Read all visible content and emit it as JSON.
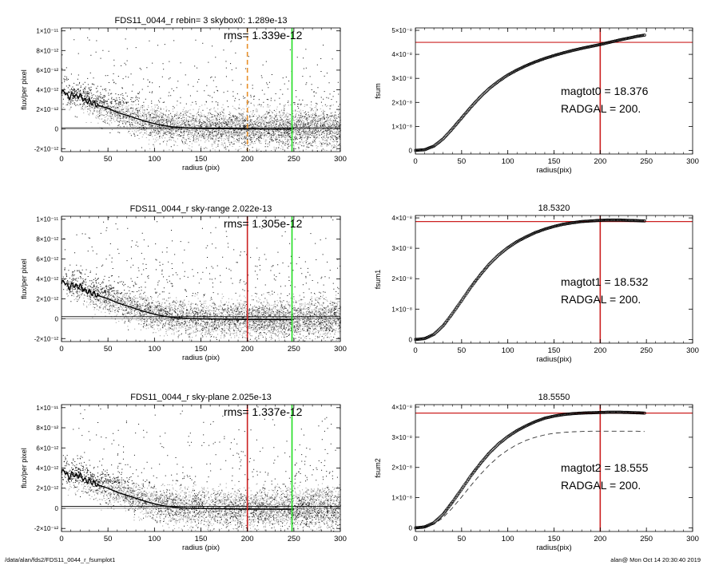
{
  "footer": {
    "path": "/data/alan/fds2/FDS11_0044_r_fsumplot1",
    "user_date": "alan@  Mon Oct 14 20:30:40 2019"
  },
  "colors": {
    "scatter_light": "#a8a8a8",
    "scatter_dark": "#1e1e1e",
    "profile": "#000000",
    "red": "#cc2020",
    "green": "#22dd22",
    "orange": "#e8902a"
  },
  "chart_data": [
    {
      "id": "flux1",
      "type": "scatter",
      "title": "FDS11_0044_r rebin= 3    skybox0:  1.289e-13",
      "annotation": "rms= 1.339e-12",
      "xlabel": "radius (pix)",
      "ylabel": "flux/per pixel",
      "xlim": [
        0,
        300
      ],
      "ylim": [
        -2.3e-12,
        1.03e-11
      ],
      "xticks": [
        "0",
        "50",
        "100",
        "150",
        "200",
        "250",
        "300"
      ],
      "yticks": [
        {
          "label": "1×10⁻¹¹",
          "value": 1e-11
        },
        {
          "label": "8×10⁻¹²",
          "value": 8e-12
        },
        {
          "label": "6×10⁻¹²",
          "value": 6e-12
        },
        {
          "label": "4×10⁻¹²",
          "value": 4e-12
        },
        {
          "label": "2×10⁻¹²",
          "value": 2e-12
        },
        {
          "label": "0",
          "value": 0
        },
        {
          "label": "-2×10⁻¹²",
          "value": -2e-12
        }
      ],
      "vlines": [
        {
          "x": 200,
          "color": "orange",
          "style": "dashed"
        },
        {
          "x": 248,
          "color": "green",
          "style": "solid"
        }
      ],
      "sky_level": 1.289e-13,
      "profile": {
        "x": [
          0,
          3,
          6,
          9,
          12,
          15,
          20,
          25,
          30,
          40,
          50,
          60,
          70,
          80,
          90,
          100,
          110,
          120,
          130,
          150,
          175,
          200,
          225,
          250
        ],
        "y": [
          3.6e-12,
          3.9e-12,
          3.4e-12,
          3.2e-12,
          3.6e-12,
          3.3e-12,
          3.4e-12,
          2.9e-12,
          2.8e-12,
          2.4e-12,
          2.1e-12,
          1.7e-12,
          1.4e-12,
          1.1e-12,
          8e-13,
          5.5e-13,
          3.5e-13,
          2.2e-13,
          1.4e-13,
          8e-14,
          4e-14,
          1e-14,
          0,
          0
        ]
      }
    },
    {
      "id": "fsum0",
      "type": "line",
      "title": "",
      "xlabel": "radius(pix)",
      "ylabel": "fsum",
      "xlim": [
        0,
        300
      ],
      "ylim": [
        -1.5e-09,
        5.1e-08
      ],
      "xticks": [
        "0",
        "50",
        "100",
        "150",
        "200",
        "250",
        "300"
      ],
      "yticks": [
        {
          "label": "0",
          "value": 0
        },
        {
          "label": "1×10⁻⁸",
          "value": 1e-08
        },
        {
          "label": "2×10⁻⁸",
          "value": 2e-08
        },
        {
          "label": "3×10⁻⁸",
          "value": 3e-08
        },
        {
          "label": "4×10⁻⁸",
          "value": 4e-08
        },
        {
          "label": "5×10⁻⁸",
          "value": 5e-08
        }
      ],
      "hline": 4.5e-08,
      "vline": 200,
      "annotations": [
        "magtot0 =  18.376",
        "RADGAL =    200."
      ],
      "curve": {
        "x": [
          0,
          10,
          20,
          30,
          40,
          50,
          60,
          70,
          80,
          90,
          100,
          110,
          120,
          130,
          140,
          150,
          160,
          170,
          180,
          190,
          200,
          210,
          220,
          230,
          240,
          248
        ],
        "y": [
          0,
          3e-10,
          1.8e-09,
          4.8e-09,
          9e-09,
          1.35e-08,
          1.8e-08,
          2.22e-08,
          2.58e-08,
          2.88e-08,
          3.14e-08,
          3.35e-08,
          3.53e-08,
          3.69e-08,
          3.83e-08,
          3.95e-08,
          4.06e-08,
          4.16e-08,
          4.25e-08,
          4.33e-08,
          4.41e-08,
          4.5e-08,
          4.59e-08,
          4.67e-08,
          4.75e-08,
          4.8e-08
        ]
      }
    },
    {
      "id": "flux2",
      "type": "scatter",
      "title": "FDS11_0044_r sky-range  2.022e-13",
      "annotation": "rms= 1.305e-12",
      "xlabel": "radius (pix)",
      "ylabel": "flux/per pixel",
      "xlim": [
        0,
        300
      ],
      "ylim": [
        -2.3e-12,
        1.03e-11
      ],
      "xticks": [
        "0",
        "50",
        "100",
        "150",
        "200",
        "250",
        "300"
      ],
      "yticks": [
        {
          "label": "1×10⁻¹¹",
          "value": 1e-11
        },
        {
          "label": "8×10⁻¹²",
          "value": 8e-12
        },
        {
          "label": "6×10⁻¹²",
          "value": 6e-12
        },
        {
          "label": "4×10⁻¹²",
          "value": 4e-12
        },
        {
          "label": "2×10⁻¹²",
          "value": 2e-12
        },
        {
          "label": "0",
          "value": 0
        },
        {
          "label": "-2×10⁻¹²",
          "value": -2e-12
        }
      ],
      "vlines": [
        {
          "x": 200,
          "color": "red",
          "style": "solid"
        },
        {
          "x": 248,
          "color": "green",
          "style": "solid"
        }
      ],
      "sky_level": 2.022e-13,
      "profile": {
        "x": [
          0,
          3,
          6,
          9,
          12,
          15,
          20,
          25,
          30,
          40,
          50,
          60,
          70,
          80,
          90,
          100,
          110,
          120,
          130,
          150,
          175,
          200,
          225,
          250
        ],
        "y": [
          3.5e-12,
          3.8e-12,
          3.3e-12,
          3.1e-12,
          3.5e-12,
          3.2e-12,
          3.3e-12,
          2.8e-12,
          2.7e-12,
          2.3e-12,
          2e-12,
          1.6e-12,
          1.3e-12,
          1e-12,
          7e-13,
          4.5e-13,
          2.5e-13,
          1.2e-13,
          4e-14,
          -2e-14,
          -5e-14,
          -8e-14,
          -9e-14,
          -1e-13
        ]
      }
    },
    {
      "id": "fsum1",
      "type": "line",
      "title": "18.5320",
      "xlabel": "radius(pix)",
      "ylabel": "fsum1",
      "xlim": [
        0,
        300
      ],
      "ylim": [
        -1.2e-09,
        4.08e-08
      ],
      "xticks": [
        "0",
        "50",
        "100",
        "150",
        "200",
        "250",
        "300"
      ],
      "yticks": [
        {
          "label": "0",
          "value": 0
        },
        {
          "label": "1×10⁻⁸",
          "value": 1e-08
        },
        {
          "label": "2×10⁻⁸",
          "value": 2e-08
        },
        {
          "label": "3×10⁻⁸",
          "value": 3e-08
        },
        {
          "label": "4×10⁻⁸",
          "value": 4e-08
        }
      ],
      "hline": 3.88e-08,
      "vline": 200,
      "annotations": [
        "magtot1 =  18.532",
        "RADGAL =    200."
      ],
      "curve": {
        "x": [
          0,
          10,
          20,
          30,
          40,
          50,
          60,
          70,
          80,
          90,
          100,
          110,
          120,
          130,
          140,
          150,
          160,
          170,
          180,
          190,
          200,
          210,
          220,
          230,
          240,
          248
        ],
        "y": [
          0,
          3e-10,
          1.7e-09,
          4.5e-09,
          8.5e-09,
          1.28e-08,
          1.72e-08,
          2.12e-08,
          2.48e-08,
          2.78e-08,
          3.02e-08,
          3.22e-08,
          3.38e-08,
          3.52e-08,
          3.63e-08,
          3.72e-08,
          3.79e-08,
          3.84e-08,
          3.88e-08,
          3.9e-08,
          3.92e-08,
          3.93e-08,
          3.93e-08,
          3.92e-08,
          3.91e-08,
          3.9e-08
        ]
      }
    },
    {
      "id": "flux3",
      "type": "scatter",
      "title": "FDS11_0044_r sky-plane  2.025e-13",
      "annotation": "rms= 1.337e-12",
      "xlabel": "radius (pix)",
      "ylabel": "flux/per pixel",
      "xlim": [
        0,
        300
      ],
      "ylim": [
        -2.3e-12,
        1.03e-11
      ],
      "xticks": [
        "0",
        "50",
        "100",
        "150",
        "200",
        "250",
        "300"
      ],
      "yticks": [
        {
          "label": "1×10⁻¹¹",
          "value": 1e-11
        },
        {
          "label": "8×10⁻¹²",
          "value": 8e-12
        },
        {
          "label": "6×10⁻¹²",
          "value": 6e-12
        },
        {
          "label": "4×10⁻¹²",
          "value": 4e-12
        },
        {
          "label": "2×10⁻¹²",
          "value": 2e-12
        },
        {
          "label": "0",
          "value": 0
        },
        {
          "label": "-2×10⁻¹²",
          "value": -2e-12
        }
      ],
      "vlines": [
        {
          "x": 200,
          "color": "red",
          "style": "solid"
        },
        {
          "x": 248,
          "color": "green",
          "style": "solid"
        }
      ],
      "sky_level": 2.025e-13,
      "profile": {
        "x": [
          0,
          3,
          6,
          9,
          12,
          15,
          20,
          25,
          30,
          40,
          50,
          60,
          70,
          80,
          90,
          100,
          110,
          120,
          130,
          150,
          175,
          200,
          225,
          250
        ],
        "y": [
          3.5e-12,
          3.8e-12,
          3.3e-12,
          3.1e-12,
          3.5e-12,
          3.2e-12,
          3.3e-12,
          2.8e-12,
          2.7e-12,
          2.3e-12,
          2e-12,
          1.6e-12,
          1.3e-12,
          1e-12,
          7e-13,
          4.5e-13,
          2.5e-13,
          1.2e-13,
          4e-14,
          -2e-14,
          -5e-14,
          -8e-14,
          -9e-14,
          -1e-13
        ]
      }
    },
    {
      "id": "fsum2",
      "type": "line",
      "title": "18.5550",
      "xlabel": "radius(pix)",
      "ylabel": "fsum2",
      "xlim": [
        0,
        300
      ],
      "ylim": [
        -1.2e-09,
        4.08e-08
      ],
      "xticks": [
        "0",
        "50",
        "100",
        "150",
        "200",
        "250",
        "300"
      ],
      "yticks": [
        {
          "label": "0",
          "value": 0
        },
        {
          "label": "1×10⁻⁸",
          "value": 1e-08
        },
        {
          "label": "2×10⁻⁸",
          "value": 2e-08
        },
        {
          "label": "3×10⁻⁸",
          "value": 3e-08
        },
        {
          "label": "4×10⁻⁸",
          "value": 4e-08
        }
      ],
      "hline": 3.8e-08,
      "vline": 200,
      "annotations": [
        "magtot2 =  18.555",
        "RADGAL =    200."
      ],
      "curve": {
        "x": [
          0,
          10,
          20,
          30,
          40,
          50,
          60,
          70,
          80,
          90,
          100,
          110,
          120,
          130,
          140,
          150,
          160,
          170,
          180,
          190,
          200,
          210,
          220,
          230,
          240,
          248
        ],
        "y": [
          0,
          3e-10,
          1.7e-09,
          4.5e-09,
          8.5e-09,
          1.28e-08,
          1.72e-08,
          2.12e-08,
          2.48e-08,
          2.78e-08,
          3.02e-08,
          3.22e-08,
          3.38e-08,
          3.52e-08,
          3.63e-08,
          3.7e-08,
          3.75e-08,
          3.78e-08,
          3.8e-08,
          3.81e-08,
          3.82e-08,
          3.83e-08,
          3.83e-08,
          3.82e-08,
          3.81e-08,
          3.8e-08
        ]
      },
      "dashed_curve": {
        "x": [
          0,
          10,
          20,
          30,
          40,
          50,
          60,
          70,
          80,
          90,
          100,
          110,
          120,
          130,
          140,
          150,
          160,
          170,
          180,
          190,
          200,
          210,
          220,
          230,
          240,
          248
        ],
        "y": [
          0,
          2e-10,
          1.2e-09,
          3.4e-09,
          6.6e-09,
          1.02e-08,
          1.4e-08,
          1.76e-08,
          2.08e-08,
          2.36e-08,
          2.58e-08,
          2.76e-08,
          2.9e-08,
          3e-08,
          3.08e-08,
          3.13e-08,
          3.16e-08,
          3.18e-08,
          3.19e-08,
          3.2e-08,
          3.2e-08,
          3.2e-08,
          3.2e-08,
          3.2e-08,
          3.2e-08,
          3.19e-08
        ]
      }
    }
  ]
}
